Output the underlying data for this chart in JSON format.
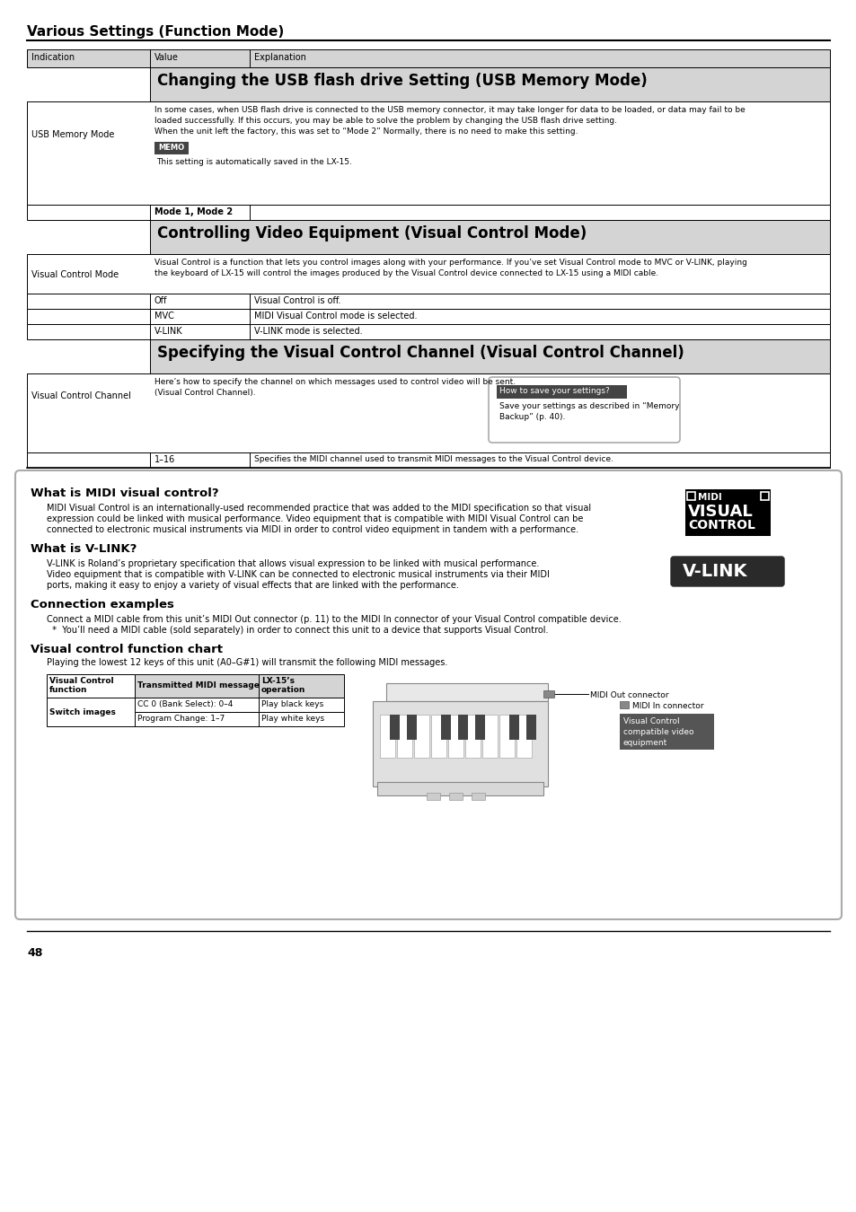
{
  "page_title": "Various Settings (Function Mode)",
  "page_number": "48",
  "bg_color": "#ffffff",
  "usb_heading": "Changing the USB flash drive Setting (USB Memory Mode)",
  "usb_body1": "In some cases, when USB flash drive is connected to the USB memory connector, it may take longer for data to be loaded, or data may fail to be",
  "usb_body2": "loaded successfully. If this occurs, you may be able to solve the problem by changing the USB flash drive setting.",
  "usb_body3": "When the unit left the factory, this was set to “Mode 2” Normally, there is no need to make this setting.",
  "memo_text": "This setting is automatically saved in the LX-15.",
  "mode_value": "Mode 1, Mode 2",
  "visual_heading": "Controlling Video Equipment (Visual Control Mode)",
  "visual_body1": "Visual Control is a function that lets you control images along with your performance. If you’ve set Visual Control mode to MVC or V-LINK, playing",
  "visual_body2": "the keyboard of LX-15 will control the images produced by the Visual Control device connected to LX-15 using a MIDI cable.",
  "visual_rows": [
    {
      "value": "Off",
      "explanation": "Visual Control is off."
    },
    {
      "value": "MVC",
      "explanation": "MIDI Visual Control mode is selected."
    },
    {
      "value": "V-LINK",
      "explanation": "V-LINK mode is selected."
    }
  ],
  "channel_heading": "Specifying the Visual Control Channel (Visual Control Channel)",
  "channel_body1": "Here’s how to specify the channel on which messages used to control video will be sent.",
  "channel_body2": "(Visual Control Channel).",
  "how_to_save_title": "How to save your settings?",
  "how_to_save_body1": "Save your settings as described in “Memory",
  "how_to_save_body2": "Backup” (p. 40).",
  "channel_row_value": "1–16",
  "channel_row_expl": "Specifies the MIDI channel used to transmit MIDI messages to the Visual Control device.",
  "indication_col": "Indication",
  "value_col": "Value",
  "explanation_col": "Explanation",
  "usb_memory_mode_label": "USB Memory Mode",
  "visual_control_mode_label": "Visual Control Mode",
  "visual_control_channel_label": "Visual Control Channel",
  "section2_title": "What is MIDI visual control?",
  "section2_body1": "MIDI Visual Control is an internationally-used recommended practice that was added to the MIDI specification so that visual",
  "section2_body2": "expression could be linked with musical performance. Video equipment that is compatible with MIDI Visual Control can be",
  "section2_body3": "connected to electronic musical instruments via MIDI in order to control video equipment in tandem with a performance.",
  "section3_title": "What is V-LINK?",
  "section3_body1": "V-LINK is Roland’s proprietary specification that allows visual expression to be linked with musical performance.",
  "section3_body2": "Video equipment that is compatible with V-LINK can be connected to electronic musical instruments via their MIDI",
  "section3_body3": "ports, making it easy to enjoy a variety of visual effects that are linked with the performance.",
  "section4_title": "Connection examples",
  "section4_body1": "Connect a MIDI cable from this unit’s MIDI Out connector (p. 11) to the MIDI In connector of your Visual Control compatible device.",
  "section4_body2": "  *  You’ll need a MIDI cable (sold separately) in order to connect this unit to a device that supports Visual Control.",
  "section5_title": "Visual control function chart",
  "section5_body": "Playing the lowest 12 keys of this unit (A0–G#1) will transmit the following MIDI messages.",
  "chart_h1": "Visual Control\nfunction",
  "chart_h2": "Transmitted MIDI message",
  "chart_h3": "LX-15’s\noperation",
  "chart_r1c1": "Switch images",
  "chart_r1c2": "CC 0 (Bank Select): 0–4",
  "chart_r1c3": "Play black keys",
  "chart_r2c2": "Program Change: 1–7",
  "chart_r2c3": "Play white keys",
  "midi_out_label": "MIDI Out connector",
  "midi_in_label": "MIDI In connector",
  "vc_label1": "Visual Control",
  "vc_label2": "compatible video",
  "vc_label3": "equipment"
}
